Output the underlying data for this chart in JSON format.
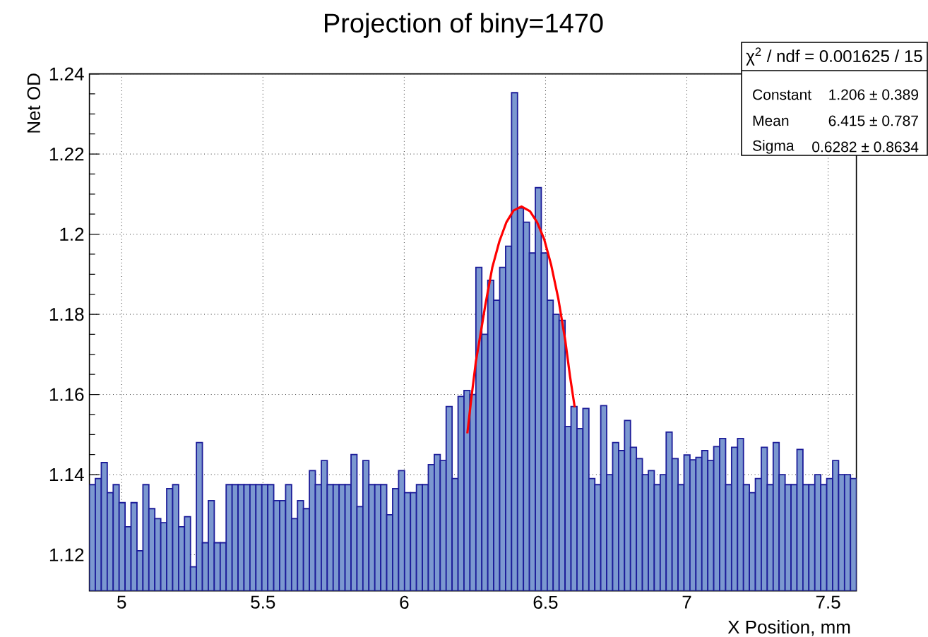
{
  "chart_data": {
    "type": "histogram",
    "title": "Projection of biny=1470",
    "xlabel": "X Position, mm",
    "ylabel": "Net OD",
    "xlim": [
      4.886,
      7.6
    ],
    "ylim": [
      1.111,
      1.24
    ],
    "xticks": [
      5,
      5.5,
      6,
      6.5,
      7,
      7.5
    ],
    "yticks": [
      1.12,
      1.14,
      1.16,
      1.18,
      1.2,
      1.22,
      1.24
    ],
    "grid": true,
    "annotations": [
      "χ$^{2}$ / ndf = 0.001625 / 15",
      "Constant",
      "1.206 ± 0.389",
      "Mean",
      "6.415 ± 0.787",
      "Sigma",
      "0.6282 ± 0.8634"
    ],
    "series": [
      {
        "color": "#7b98d0",
        "bins": [
          4.886,
          4.907,
          4.9281,
          4.9491,
          4.9702,
          4.9912,
          5.0122,
          5.0333,
          5.0543,
          5.0754,
          5.0964,
          5.1174,
          5.1385,
          5.1595,
          5.1806,
          5.2016,
          5.2226,
          5.2437,
          5.2647,
          5.2858,
          5.3068,
          5.3278,
          5.3489,
          5.3699,
          5.391,
          5.412,
          5.433,
          5.4541,
          5.4751,
          5.4962,
          5.5172,
          5.5382,
          5.5593,
          5.5803,
          5.6014,
          5.6224,
          5.6434,
          5.6645,
          5.6855,
          5.7066,
          5.7276,
          5.7486,
          5.7697,
          5.7907,
          5.8118,
          5.8328,
          5.8538,
          5.8749,
          5.8959,
          5.917,
          5.938,
          5.959,
          5.9801,
          6.0011,
          6.0222,
          6.0432,
          6.0642,
          6.0853,
          6.1063,
          6.1274,
          6.1484,
          6.1694,
          6.1905,
          6.2115,
          6.2326,
          6.2536,
          6.2746,
          6.2957,
          6.3167,
          6.3378,
          6.3588,
          6.3798,
          6.4009,
          6.4219,
          6.443,
          6.464,
          6.485,
          6.5061,
          6.5271,
          6.5482,
          6.5692,
          6.5902,
          6.6113,
          6.6323,
          6.6534,
          6.6744,
          6.6954,
          6.7165,
          6.7375,
          6.7586,
          6.7796,
          6.8006,
          6.8217,
          6.8427,
          6.8638,
          6.8848,
          6.9058,
          6.9269,
          6.9479,
          6.969,
          6.99,
          7.011,
          7.0321,
          7.0531,
          7.0742,
          7.0952,
          7.1162,
          7.1373,
          7.1583,
          7.1794,
          7.2004,
          7.2214,
          7.2425,
          7.2635,
          7.2846,
          7.3056,
          7.3266,
          7.3477,
          7.3687,
          7.3898,
          7.4108,
          7.4318,
          7.4529,
          7.4739,
          7.495,
          7.516,
          7.537,
          7.5581,
          7.5791,
          7.6
        ],
        "values": [
          1.1375,
          1.139,
          1.143,
          1.1355,
          1.1375,
          1.133,
          1.127,
          1.133,
          1.121,
          1.1375,
          1.1315,
          1.129,
          1.128,
          1.1365,
          1.1375,
          1.127,
          1.1295,
          1.117,
          1.148,
          1.123,
          1.1335,
          1.123,
          1.123,
          1.1375,
          1.1375,
          1.1375,
          1.1375,
          1.1375,
          1.1375,
          1.1375,
          1.1375,
          1.1335,
          1.1335,
          1.1375,
          1.129,
          1.1335,
          1.1315,
          1.141,
          1.1375,
          1.1435,
          1.1375,
          1.1375,
          1.1375,
          1.1375,
          1.145,
          1.132,
          1.1435,
          1.1375,
          1.1375,
          1.1375,
          1.13,
          1.1365,
          1.141,
          1.1355,
          1.1355,
          1.1375,
          1.1375,
          1.1425,
          1.145,
          1.1435,
          1.157,
          1.139,
          1.1595,
          1.161,
          1.16,
          1.1917,
          1.175,
          1.1885,
          1.1835,
          1.1917,
          1.197,
          1.2353,
          1.2065,
          1.203,
          1.1953,
          1.2116,
          1.1953,
          1.1835,
          1.18,
          1.1785,
          1.152,
          1.157,
          1.1515,
          1.1565,
          1.139,
          1.1375,
          1.1572,
          1.14,
          1.148,
          1.146,
          1.1535,
          1.1468,
          1.144,
          1.14,
          1.141,
          1.1375,
          1.14,
          1.1506,
          1.144,
          1.1375,
          1.1449,
          1.1437,
          1.1443,
          1.146,
          1.1435,
          1.147,
          1.149,
          1.1375,
          1.1468,
          1.149,
          1.1375,
          1.1355,
          1.139,
          1.1468,
          1.1375,
          1.148,
          1.14,
          1.1375,
          1.1375,
          1.1463,
          1.1375,
          1.1375,
          1.14,
          1.1375,
          1.139,
          1.1435,
          1.14,
          1.14,
          1.139
        ]
      },
      {
        "type": "line",
        "color": "#ff0000",
        "x": [
          6.2233,
          6.2367,
          6.2533,
          6.27,
          6.2867,
          6.3117,
          6.3367,
          6.3617,
          6.3867,
          6.415,
          6.445,
          6.47,
          6.495,
          6.52,
          6.545,
          6.57,
          6.5867,
          6.6033
        ],
        "values": [
          1.1503,
          1.1586,
          1.1681,
          1.1751,
          1.1822,
          1.1917,
          1.1982,
          1.203,
          1.2059,
          1.2069,
          1.2057,
          1.203,
          1.1988,
          1.1923,
          1.184,
          1.1734,
          1.1645,
          1.1568
        ]
      }
    ]
  }
}
